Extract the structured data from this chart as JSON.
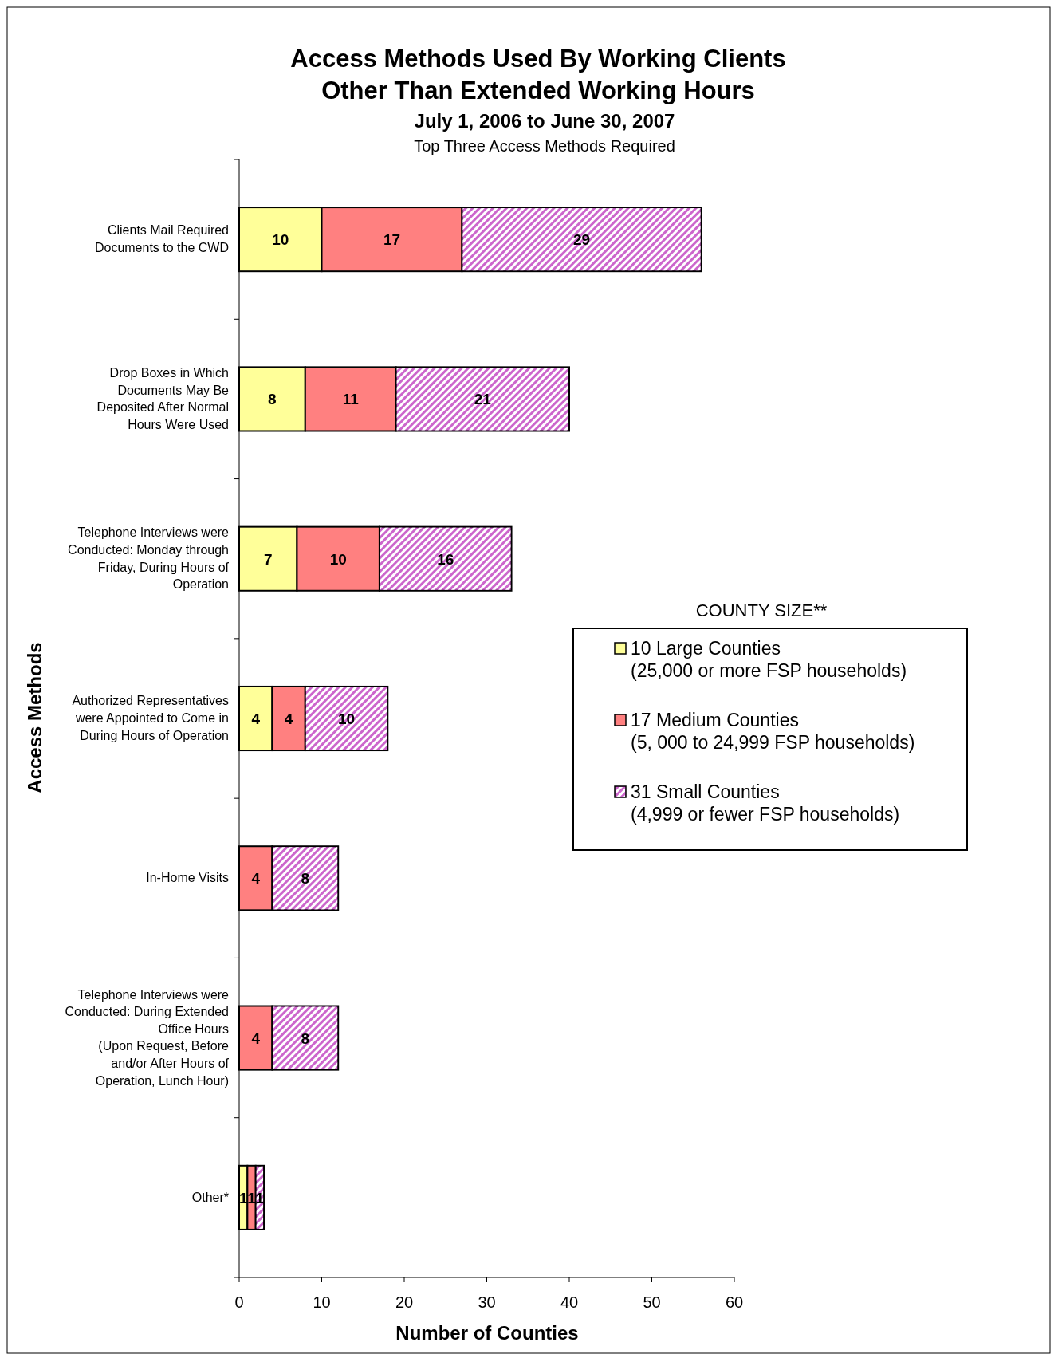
{
  "chart_data": {
    "type": "bar",
    "orientation": "horizontal",
    "stacked": true,
    "data_labels": true,
    "title": "Access Methods Used By Working Clients\nOther Than Extended Working Hours",
    "subtitle": "July 1, 2006 to June 30, 2007",
    "annotations": [
      "Top Three Access Methods Required"
    ],
    "xlabel": "Number of Counties",
    "ylabel": "Access Methods",
    "legend_title": "COUNTY SIZE**",
    "legend": "right",
    "categories": [
      "Clients Mail Required\nDocuments to the CWD",
      "Drop Boxes in Which\nDocuments May Be\nDeposited After Normal\nHours Were Used",
      "Telephone Interviews were\nConducted: Monday through\nFriday, During Hours of\nOperation",
      "Authorized Representatives\nwere Appointed to Come in\nDuring Hours of Operation",
      "In-Home Visits",
      "Telephone Interviews were\nConducted: During Extended\nOffice Hours\n(Upon Request, Before\nand/or After Hours of\nOperation, Lunch Hour)",
      "Other*"
    ],
    "series": [
      {
        "name": "10 Large Counties\n(25,000 or more FSP households)",
        "color": "#ffff99",
        "values": [
          10,
          8,
          7,
          4,
          null,
          null,
          1
        ]
      },
      {
        "name": "17 Medium Counties\n(5, 000 to 24,999 FSP households)",
        "color": "#ff8080",
        "values": [
          17,
          11,
          10,
          4,
          4,
          4,
          1
        ]
      },
      {
        "name": "31 Small Counties\n(4,999 or fewer FSP households)",
        "color": "#cc66cc",
        "values": [
          29,
          21,
          16,
          10,
          8,
          8,
          1
        ]
      }
    ],
    "xlim": [
      0,
      60
    ],
    "xticks": [
      0,
      10,
      20,
      30,
      40,
      50,
      60
    ],
    "grid": false
  }
}
